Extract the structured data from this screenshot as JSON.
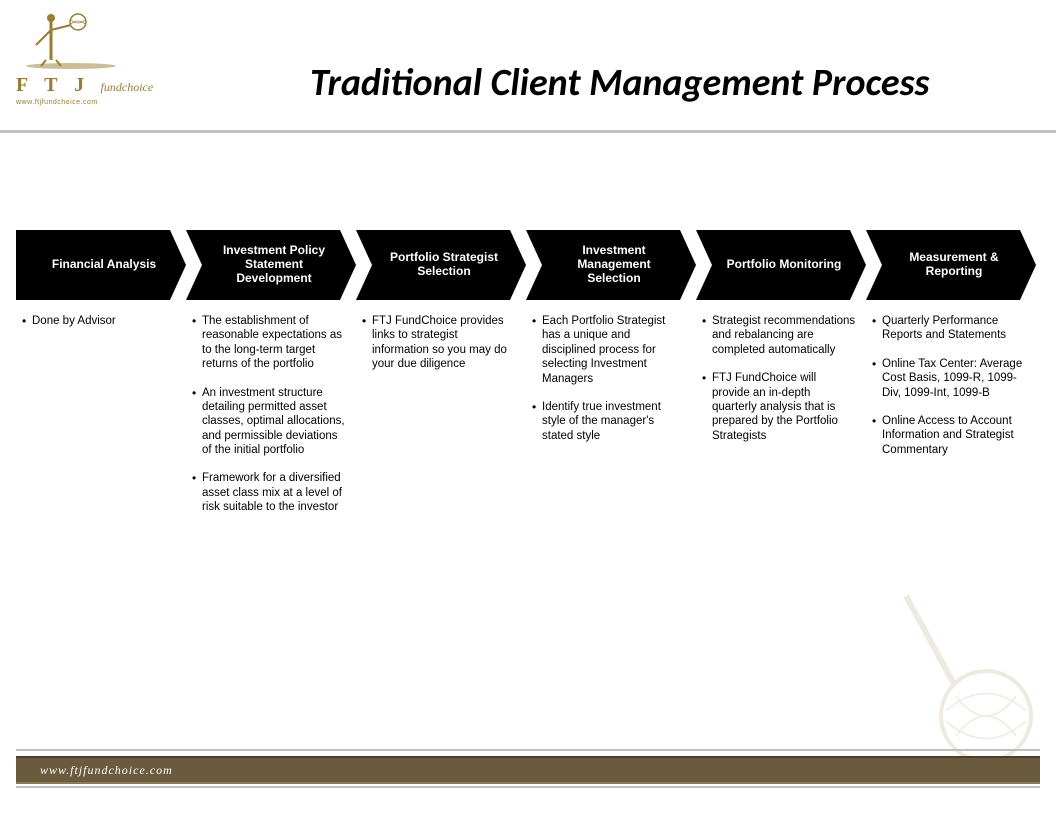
{
  "logo": {
    "main": "F T J",
    "sub": "fundchoice",
    "url": "www.ftjfundchoice.com",
    "brand_color": "#9b7b2e"
  },
  "title": "Traditional Client Management Process",
  "title_fontsize": 38,
  "title_color": "#000000",
  "divider_color": "#c0c0c0",
  "process": {
    "type": "flowchart",
    "chevron_fill": "#000000",
    "chevron_text_color": "#ffffff",
    "chevron_fontsize": 12,
    "bullet_fontsize": 11.5,
    "bullet_color": "#000000",
    "steps": [
      {
        "label": "Financial Analysis",
        "bullets": [
          "Done by Advisor"
        ]
      },
      {
        "label": "Investment Policy Statement Development",
        "bullets": [
          "The establishment of reasonable expectations as to the long-term target returns of the portfolio",
          "An investment structure detailing permitted asset classes, optimal allocations, and permissible deviations of the initial portfolio",
          "Framework for a diversified asset class mix at a level of risk suitable to the investor"
        ]
      },
      {
        "label": "Portfolio Strategist Selection",
        "bullets": [
          "FTJ FundChoice provides links to strategist information so you may do your due diligence"
        ]
      },
      {
        "label": "Investment Management Selection",
        "bullets": [
          "Each Portfolio Strategist has a unique and disciplined process for selecting Investment Managers",
          "Identify true investment style of the manager's stated style"
        ]
      },
      {
        "label": "Portfolio Monitoring",
        "bullets": [
          "Strategist recommendations and rebalancing are completed automatically",
          "FTJ FundChoice will provide an in-depth quarterly analysis that is prepared by the Portfolio Strategists"
        ]
      },
      {
        "label": "Measurement & Reporting",
        "bullets": [
          "Quarterly Performance Reports and Statements",
          "Online Tax Center: Average Cost Basis, 1099-R, 1099-Div, 1099-Int, 1099-B",
          "Online Access to Account Information and Strategist Commentary"
        ]
      }
    ]
  },
  "footer": {
    "bar_color": "#6b5b3e",
    "url": "www.ftjfundchoice.com",
    "url_color": "#ffffff"
  }
}
